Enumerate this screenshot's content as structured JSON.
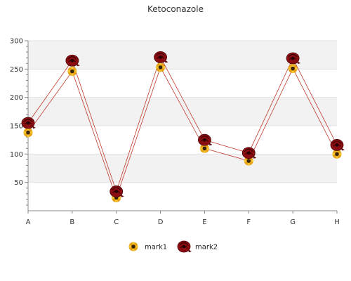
{
  "chart_data": {
    "type": "line",
    "title": "Ketoconazole",
    "xlabel": "",
    "ylabel": "",
    "categories": [
      "A",
      "B",
      "C",
      "D",
      "E",
      "F",
      "G",
      "H"
    ],
    "ylim": [
      0,
      300
    ],
    "yticks": [
      50,
      100,
      150,
      200,
      250,
      300
    ],
    "grid": true,
    "legend_position": "bottom",
    "series": [
      {
        "name": "mark1",
        "values": [
          138,
          246,
          23,
          253,
          110,
          88,
          251,
          100
        ],
        "color": "#c0392b",
        "marker": "sunflower-icon"
      },
      {
        "name": "mark2",
        "values": [
          155,
          265,
          34,
          271,
          125,
          102,
          269,
          116
        ],
        "color": "#c0392b",
        "marker": "rose-icon"
      }
    ]
  }
}
